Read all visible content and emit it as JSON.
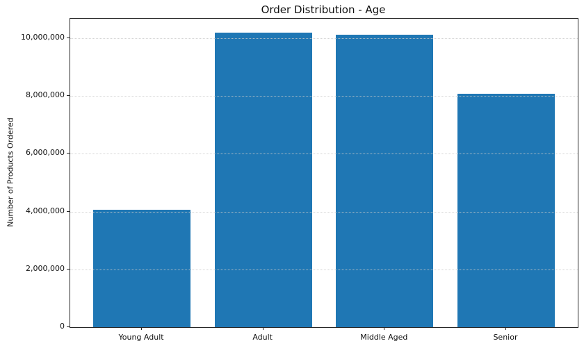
{
  "figure": {
    "title": "Order Distribution - Age",
    "ylabel": "Number of Products Ordered"
  },
  "chart_data": {
    "type": "bar",
    "title": "Order Distribution - Age",
    "xlabel": "",
    "ylabel": "Number of Products Ordered",
    "categories": [
      "Young Adult",
      "Adult",
      "Middle Aged",
      "Senior"
    ],
    "values": [
      4060000,
      10180000,
      10110000,
      8080000
    ],
    "ylim": [
      0,
      10670000
    ],
    "yticks": [
      0,
      2000000,
      4000000,
      6000000,
      8000000,
      10000000
    ],
    "ytick_labels": [
      "0",
      "2,000,000",
      "4,000,000",
      "6,000,000",
      "8,000,000",
      "10,000,000"
    ],
    "bar_color": "#1f77b4",
    "grid": {
      "axis": "y",
      "style": "dotted",
      "color": "#c9c9c9",
      "above_bars": true
    },
    "legend": null
  }
}
